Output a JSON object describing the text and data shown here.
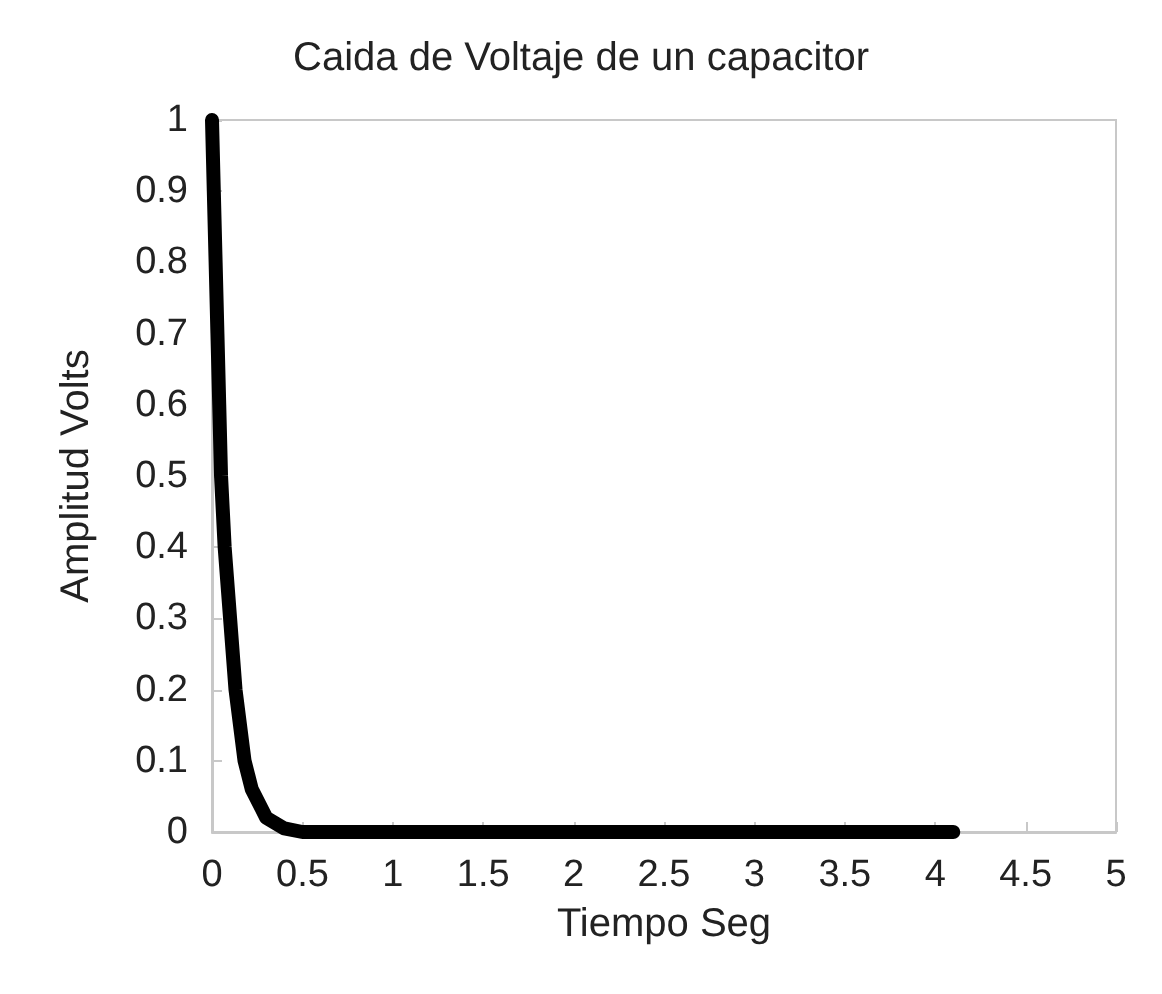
{
  "chart_data": {
    "type": "line",
    "title": "Caida de Voltaje de un capacitor",
    "xlabel": "Tiempo Seg",
    "ylabel": "Amplitud Volts",
    "series": [
      {
        "color": "#000000",
        "x": [
          0,
          0.01,
          0.02,
          0.03,
          0.04,
          0.05,
          0.07,
          0.1,
          0.13,
          0.18,
          0.22,
          0.3,
          0.4,
          0.5,
          4.1
        ],
        "values": [
          1,
          0.9,
          0.8,
          0.7,
          0.6,
          0.5,
          0.4,
          0.3,
          0.2,
          0.1,
          0.06,
          0.02,
          0.005,
          0,
          0
        ]
      }
    ],
    "xlim": [
      0,
      5
    ],
    "xticks": [
      0,
      0.5,
      1,
      1.5,
      2,
      2.5,
      3,
      3.5,
      4,
      4.5,
      5
    ],
    "ylim": [
      0,
      1
    ],
    "yticks": [
      0,
      0.1,
      0.2,
      0.3,
      0.4,
      0.5,
      0.6,
      0.7,
      0.8,
      0.9,
      1
    ],
    "grid": false,
    "marker": "none",
    "line_style": "solid"
  }
}
